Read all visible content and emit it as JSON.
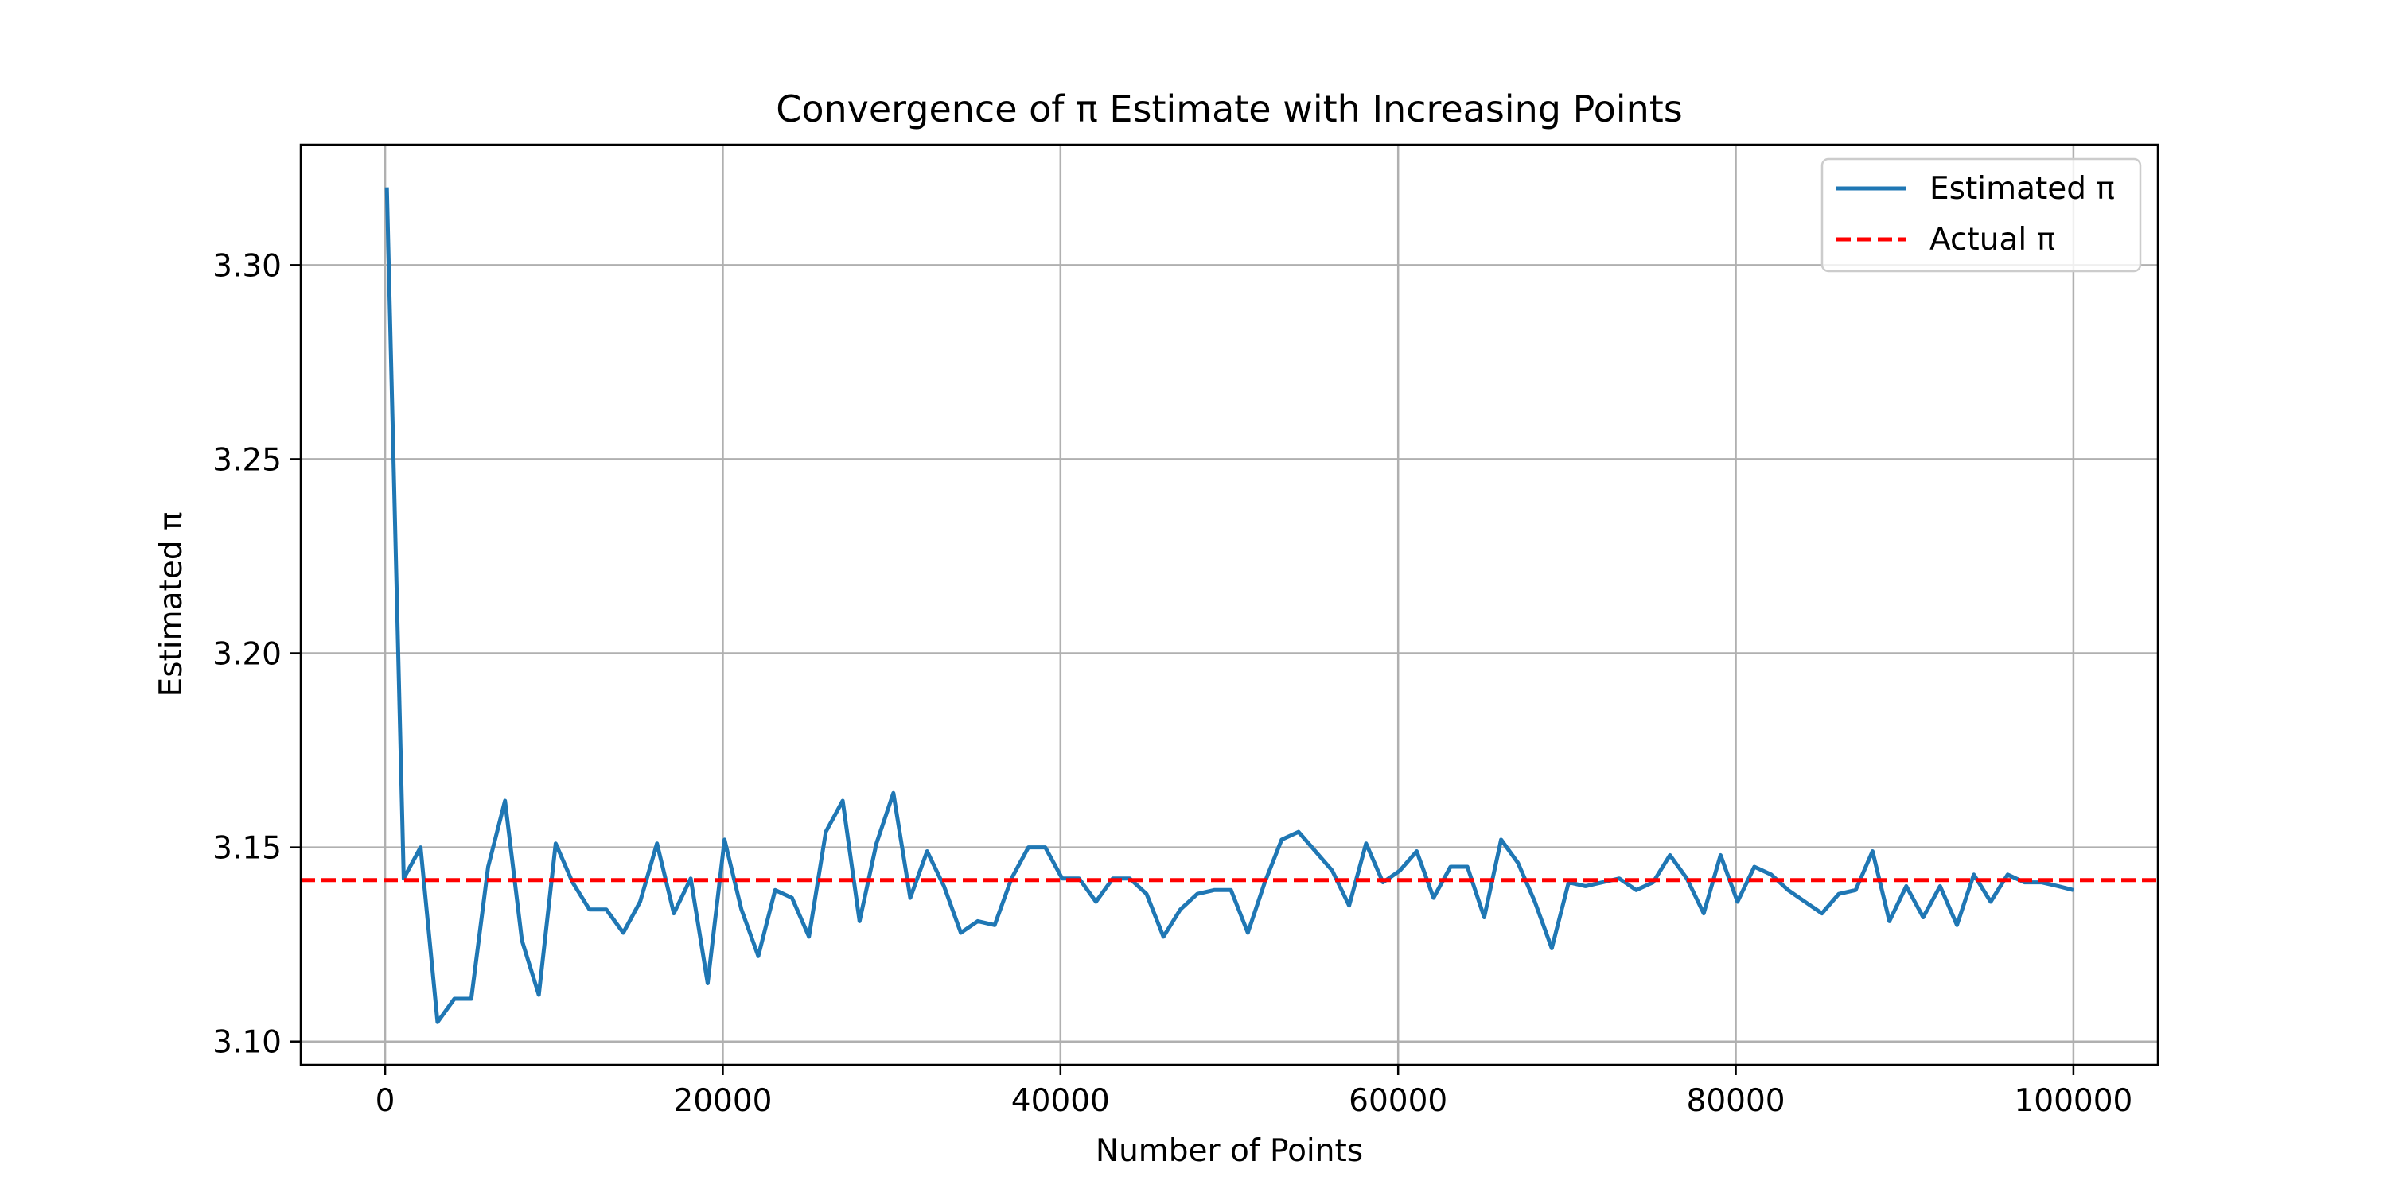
{
  "chart_data": {
    "type": "line",
    "title": "Convergence of π Estimate with Increasing Points",
    "xlabel": "Number of Points",
    "ylabel": "Estimated π",
    "xlim": [
      -5000,
      105000
    ],
    "ylim": [
      3.094,
      3.331
    ],
    "xticks": [
      0,
      20000,
      40000,
      60000,
      80000,
      100000
    ],
    "xtick_labels": [
      "0",
      "20000",
      "40000",
      "60000",
      "80000",
      "100000"
    ],
    "yticks": [
      3.1,
      3.15,
      3.2,
      3.25,
      3.3
    ],
    "ytick_labels": [
      "3.10",
      "3.15",
      "3.20",
      "3.25",
      "3.30"
    ],
    "grid": true,
    "legend": {
      "position": "top-right",
      "entries": [
        {
          "label": "Estimated π",
          "color": "#1f77b4",
          "style": "solid"
        },
        {
          "label": "Actual π",
          "color": "#ff0000",
          "style": "dashed"
        }
      ]
    },
    "series": [
      {
        "name": "Estimated π",
        "color": "#1f77b4",
        "style": "solid",
        "x": [
          100,
          1100,
          2100,
          3100,
          4100,
          5100,
          6100,
          7100,
          8100,
          9100,
          10100,
          11100,
          12100,
          13100,
          14100,
          15100,
          16100,
          17100,
          18100,
          19100,
          20100,
          21100,
          22100,
          23100,
          24100,
          25100,
          26100,
          27100,
          28100,
          29100,
          30100,
          31100,
          32100,
          33100,
          34100,
          35100,
          36100,
          37100,
          38100,
          39100,
          40100,
          41100,
          42100,
          43100,
          44100,
          45100,
          46100,
          47100,
          48100,
          49100,
          50100,
          51100,
          52100,
          53100,
          54100,
          55100,
          56100,
          57100,
          58100,
          59100,
          60100,
          61100,
          62100,
          63100,
          64100,
          65100,
          66100,
          67100,
          68100,
          69100,
          70100,
          71100,
          72100,
          73100,
          74100,
          75100,
          76100,
          77100,
          78100,
          79100,
          80100,
          81100,
          82100,
          83100,
          84100,
          85100,
          86100,
          87100,
          88100,
          89100,
          90100,
          91100,
          92100,
          93100,
          94100,
          95100,
          96100,
          97100,
          98100,
          99100,
          100000
        ],
        "y": [
          3.32,
          3.142,
          3.15,
          3.105,
          3.111,
          3.111,
          3.145,
          3.162,
          3.126,
          3.112,
          3.151,
          3.141,
          3.134,
          3.134,
          3.128,
          3.136,
          3.151,
          3.133,
          3.142,
          3.115,
          3.152,
          3.134,
          3.122,
          3.139,
          3.137,
          3.127,
          3.154,
          3.162,
          3.131,
          3.151,
          3.164,
          3.137,
          3.149,
          3.14,
          3.128,
          3.131,
          3.13,
          3.142,
          3.15,
          3.15,
          3.142,
          3.142,
          3.136,
          3.142,
          3.142,
          3.138,
          3.127,
          3.134,
          3.138,
          3.139,
          3.139,
          3.128,
          3.141,
          3.152,
          3.154,
          3.149,
          3.144,
          3.135,
          3.151,
          3.141,
          3.144,
          3.149,
          3.137,
          3.145,
          3.145,
          3.132,
          3.152,
          3.146,
          3.136,
          3.124,
          3.141,
          3.14,
          3.141,
          3.142,
          3.139,
          3.141,
          3.148,
          3.142,
          3.133,
          3.148,
          3.136,
          3.145,
          3.143,
          3.139,
          3.136,
          3.133,
          3.138,
          3.139,
          3.149,
          3.131,
          3.14,
          3.132,
          3.14,
          3.13,
          3.143,
          3.136,
          3.143,
          3.141,
          3.141,
          3.14,
          3.139
        ]
      },
      {
        "name": "Actual π",
        "color": "#ff0000",
        "style": "dashed",
        "x": [
          -5000,
          105000
        ],
        "y": [
          3.14159,
          3.14159
        ]
      }
    ]
  }
}
